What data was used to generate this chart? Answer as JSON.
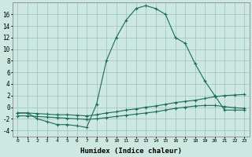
{
  "xlabel": "Humidex (Indice chaleur)",
  "ylabel": "",
  "background_color": "#cce8e0",
  "grid_color": "#a0c8c0",
  "line_color": "#1a6b5a",
  "x_hours": [
    0,
    1,
    2,
    3,
    4,
    5,
    6,
    7,
    8,
    9,
    10,
    11,
    12,
    13,
    14,
    15,
    16,
    17,
    18,
    19,
    20,
    21,
    22,
    23
  ],
  "series1": [
    -1,
    -1,
    -2,
    -2.5,
    -3,
    -3,
    -3.2,
    -3.5,
    0.5,
    8,
    12,
    15,
    17,
    17.5,
    17,
    16,
    12,
    11,
    7.5,
    4.5,
    2,
    -0.5,
    -0.5,
    -0.5
  ],
  "series2": [
    -1.0,
    -1.0,
    -1.1,
    -1.2,
    -1.3,
    -1.3,
    -1.4,
    -1.5,
    -1.3,
    -1.0,
    -0.8,
    -0.5,
    -0.3,
    0.0,
    0.2,
    0.5,
    0.8,
    1.0,
    1.2,
    1.5,
    1.8,
    2.0,
    2.1,
    2.2
  ],
  "series3": [
    -1.5,
    -1.5,
    -1.6,
    -1.7,
    -1.8,
    -1.9,
    -2.0,
    -2.1,
    -2.0,
    -1.8,
    -1.6,
    -1.4,
    -1.2,
    -1.0,
    -0.8,
    -0.5,
    -0.2,
    0.0,
    0.2,
    0.3,
    0.3,
    0.1,
    -0.1,
    -0.2
  ],
  "ylim": [
    -5,
    18
  ],
  "yticks": [
    -4,
    -2,
    0,
    2,
    4,
    6,
    8,
    10,
    12,
    14,
    16
  ],
  "xtick_labels": [
    "0",
    "1",
    "2",
    "3",
    "4",
    "5",
    "6",
    "7",
    "8",
    "9",
    "10",
    "11",
    "12",
    "13",
    "14",
    "15",
    "16",
    "17",
    "18",
    "19",
    "20",
    "21",
    "22",
    "23"
  ]
}
